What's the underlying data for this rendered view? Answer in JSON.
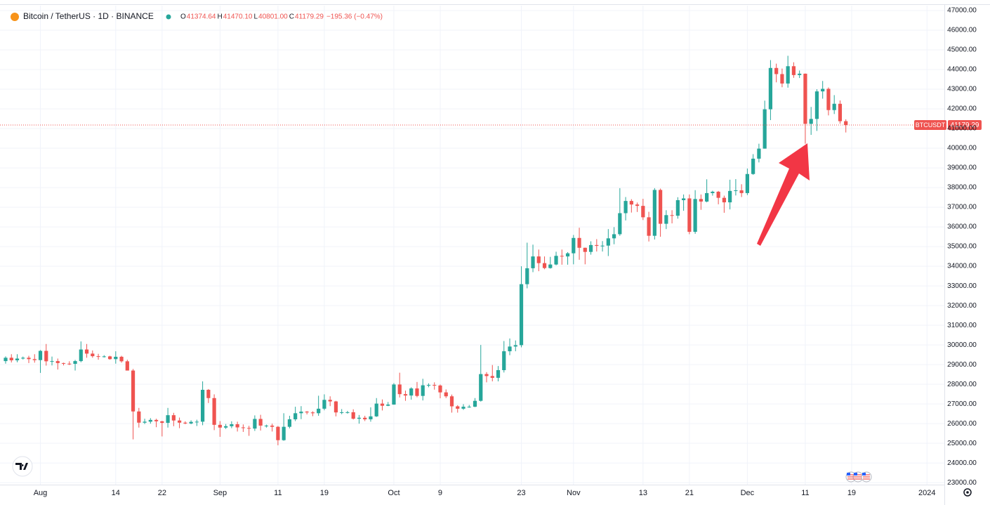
{
  "chart_data": {
    "type": "candlestick",
    "title": "Bitcoin / TetherUS · 1D · BINANCE",
    "legend": [
      {
        "key": "O",
        "value": "41374.64"
      },
      {
        "key": "H",
        "value": "41470.10"
      },
      {
        "key": "L",
        "value": "40801.00"
      },
      {
        "key": "C",
        "value": "41179.29"
      }
    ],
    "change": "−195.36 (−0.47%)",
    "up_color": "#26a69a",
    "down_color": "#ef5350",
    "price_line": {
      "symbol": "BTCUSDT",
      "value": 41179.29,
      "label": "41179.29"
    },
    "grid": true,
    "xlim": [
      "2023-07-26",
      "2024-01-04"
    ],
    "ylim": [
      22900,
      47250
    ],
    "xticks": [
      {
        "value": "2023-08-01",
        "label": "Aug"
      },
      {
        "value": "2023-08-14",
        "label": "14"
      },
      {
        "value": "2023-08-22",
        "label": "22"
      },
      {
        "value": "2023-09-01",
        "label": "Sep"
      },
      {
        "value": "2023-09-11",
        "label": "11"
      },
      {
        "value": "2023-09-19",
        "label": "19"
      },
      {
        "value": "2023-10-01",
        "label": "Oct"
      },
      {
        "value": "2023-10-09",
        "label": "9"
      },
      {
        "value": "2023-10-23",
        "label": "23"
      },
      {
        "value": "2023-11-01",
        "label": "Nov"
      },
      {
        "value": "2023-11-13",
        "label": "13"
      },
      {
        "value": "2023-11-21",
        "label": "21"
      },
      {
        "value": "2023-12-01",
        "label": "Dec"
      },
      {
        "value": "2023-12-11",
        "label": "11"
      },
      {
        "value": "2023-12-19",
        "label": "19"
      },
      {
        "value": "2024-01-01",
        "label": "2024"
      }
    ],
    "yticks": [
      {
        "value": 47000,
        "label": "47000.00"
      },
      {
        "value": 46000,
        "label": "46000.00"
      },
      {
        "value": 45000,
        "label": "45000.00"
      },
      {
        "value": 44000,
        "label": "44000.00"
      },
      {
        "value": 43000,
        "label": "43000.00"
      },
      {
        "value": 42000,
        "label": "42000.00"
      },
      {
        "value": 41000,
        "label": "41000.00"
      },
      {
        "value": 40000,
        "label": "40000.00"
      },
      {
        "value": 39000,
        "label": "39000.00"
      },
      {
        "value": 38000,
        "label": "38000.00"
      },
      {
        "value": 37000,
        "label": "37000.00"
      },
      {
        "value": 36000,
        "label": "36000.00"
      },
      {
        "value": 35000,
        "label": "35000.00"
      },
      {
        "value": 34000,
        "label": "34000.00"
      },
      {
        "value": 33000,
        "label": "33000.00"
      },
      {
        "value": 32000,
        "label": "32000.00"
      },
      {
        "value": 31000,
        "label": "31000.00"
      },
      {
        "value": 30000,
        "label": "30000.00"
      },
      {
        "value": 29000,
        "label": "29000.00"
      },
      {
        "value": 28000,
        "label": "28000.00"
      },
      {
        "value": 27000,
        "label": "27000.00"
      },
      {
        "value": 26000,
        "label": "26000.00"
      },
      {
        "value": 25000,
        "label": "25000.00"
      },
      {
        "value": 24000,
        "label": "24000.00"
      },
      {
        "value": 23000,
        "label": "23000.00"
      }
    ],
    "x": [
      "2023-07-26",
      "2023-07-27",
      "2023-07-28",
      "2023-07-29",
      "2023-07-30",
      "2023-07-31",
      "2023-08-01",
      "2023-08-02",
      "2023-08-03",
      "2023-08-04",
      "2023-08-05",
      "2023-08-06",
      "2023-08-07",
      "2023-08-08",
      "2023-08-09",
      "2023-08-10",
      "2023-08-11",
      "2023-08-12",
      "2023-08-13",
      "2023-08-14",
      "2023-08-15",
      "2023-08-16",
      "2023-08-17",
      "2023-08-18",
      "2023-08-19",
      "2023-08-20",
      "2023-08-21",
      "2023-08-22",
      "2023-08-23",
      "2023-08-24",
      "2023-08-25",
      "2023-08-26",
      "2023-08-27",
      "2023-08-28",
      "2023-08-29",
      "2023-08-30",
      "2023-08-31",
      "2023-09-01",
      "2023-09-02",
      "2023-09-03",
      "2023-09-04",
      "2023-09-05",
      "2023-09-06",
      "2023-09-07",
      "2023-09-08",
      "2023-09-09",
      "2023-09-10",
      "2023-09-11",
      "2023-09-12",
      "2023-09-13",
      "2023-09-14",
      "2023-09-15",
      "2023-09-16",
      "2023-09-17",
      "2023-09-18",
      "2023-09-19",
      "2023-09-20",
      "2023-09-21",
      "2023-09-22",
      "2023-09-23",
      "2023-09-24",
      "2023-09-25",
      "2023-09-26",
      "2023-09-27",
      "2023-09-28",
      "2023-09-29",
      "2023-09-30",
      "2023-10-01",
      "2023-10-02",
      "2023-10-03",
      "2023-10-04",
      "2023-10-05",
      "2023-10-06",
      "2023-10-07",
      "2023-10-08",
      "2023-10-09",
      "2023-10-10",
      "2023-10-11",
      "2023-10-12",
      "2023-10-13",
      "2023-10-14",
      "2023-10-15",
      "2023-10-16",
      "2023-10-17",
      "2023-10-18",
      "2023-10-19",
      "2023-10-20",
      "2023-10-21",
      "2023-10-22",
      "2023-10-23",
      "2023-10-24",
      "2023-10-25",
      "2023-10-26",
      "2023-10-27",
      "2023-10-28",
      "2023-10-29",
      "2023-10-30",
      "2023-10-31",
      "2023-11-01",
      "2023-11-02",
      "2023-11-03",
      "2023-11-04",
      "2023-11-05",
      "2023-11-06",
      "2023-11-07",
      "2023-11-08",
      "2023-11-09",
      "2023-11-10",
      "2023-11-11",
      "2023-11-12",
      "2023-11-13",
      "2023-11-14",
      "2023-11-15",
      "2023-11-16",
      "2023-11-17",
      "2023-11-18",
      "2023-11-19",
      "2023-11-20",
      "2023-11-21",
      "2023-11-22",
      "2023-11-23",
      "2023-11-24",
      "2023-11-25",
      "2023-11-26",
      "2023-11-27",
      "2023-11-28",
      "2023-11-29",
      "2023-11-30",
      "2023-12-01",
      "2023-12-02",
      "2023-12-03",
      "2023-12-04",
      "2023-12-05",
      "2023-12-06",
      "2023-12-07",
      "2023-12-08",
      "2023-12-09",
      "2023-12-10",
      "2023-12-11",
      "2023-12-12",
      "2023-12-13",
      "2023-12-14",
      "2023-12-15",
      "2023-12-16",
      "2023-12-17",
      "2023-12-18"
    ],
    "candles": [
      [
        29180,
        29420,
        29050,
        29350
      ],
      [
        29350,
        29530,
        29110,
        29220
      ],
      [
        29220,
        29530,
        29120,
        29310
      ],
      [
        29310,
        29410,
        29260,
        29350
      ],
      [
        29350,
        29450,
        29080,
        29280
      ],
      [
        29280,
        29530,
        29100,
        29230
      ],
      [
        29230,
        29740,
        28580,
        29700
      ],
      [
        29700,
        30050,
        28950,
        29170
      ],
      [
        29170,
        29410,
        28960,
        29180
      ],
      [
        29180,
        29310,
        28750,
        29080
      ],
      [
        29080,
        29100,
        28960,
        29050
      ],
      [
        29050,
        29170,
        28980,
        29040
      ],
      [
        29040,
        29240,
        28700,
        29180
      ],
      [
        29180,
        30180,
        29120,
        29770
      ],
      [
        29770,
        30050,
        29350,
        29560
      ],
      [
        29560,
        29720,
        29350,
        29430
      ],
      [
        29430,
        29550,
        29250,
        29400
      ],
      [
        29400,
        29480,
        29360,
        29420
      ],
      [
        29420,
        29450,
        29250,
        29280
      ],
      [
        29280,
        29680,
        29050,
        29400
      ],
      [
        29400,
        29450,
        29100,
        29170
      ],
      [
        29170,
        29250,
        28700,
        28700
      ],
      [
        28700,
        28780,
        25200,
        26620
      ],
      [
        26620,
        26800,
        25800,
        26050
      ],
      [
        26050,
        26250,
        25980,
        26100
      ],
      [
        26100,
        26280,
        26000,
        26190
      ],
      [
        26190,
        26250,
        25820,
        26120
      ],
      [
        26120,
        26140,
        25350,
        26040
      ],
      [
        26040,
        26800,
        25800,
        26430
      ],
      [
        26430,
        26550,
        25870,
        26160
      ],
      [
        26160,
        26310,
        25770,
        26050
      ],
      [
        26050,
        26120,
        25970,
        26010
      ],
      [
        26010,
        26170,
        25970,
        26090
      ],
      [
        26090,
        26200,
        25880,
        26100
      ],
      [
        26100,
        28150,
        25920,
        27720
      ],
      [
        27720,
        27760,
        27050,
        27300
      ],
      [
        27300,
        27490,
        25670,
        25940
      ],
      [
        25940,
        26130,
        25330,
        25800
      ],
      [
        25800,
        25980,
        25730,
        25870
      ],
      [
        25870,
        26120,
        25770,
        25970
      ],
      [
        25970,
        26100,
        25600,
        25810
      ],
      [
        25810,
        25960,
        25580,
        25780
      ],
      [
        25780,
        25890,
        25380,
        25750
      ],
      [
        25750,
        26420,
        25630,
        26240
      ],
      [
        26240,
        26450,
        25650,
        25900
      ],
      [
        25900,
        25950,
        25800,
        25900
      ],
      [
        25900,
        26000,
        25600,
        25840
      ],
      [
        25840,
        25880,
        24900,
        25160
      ],
      [
        25160,
        26530,
        25130,
        25840
      ],
      [
        25840,
        26400,
        25760,
        26220
      ],
      [
        26220,
        26860,
        26130,
        26530
      ],
      [
        26530,
        26890,
        26230,
        26610
      ],
      [
        26610,
        26640,
        26470,
        26570
      ],
      [
        26570,
        26630,
        26380,
        26530
      ],
      [
        26530,
        27420,
        26400,
        26760
      ],
      [
        26760,
        27490,
        26680,
        27210
      ],
      [
        27210,
        27390,
        26890,
        27130
      ],
      [
        27130,
        27160,
        26370,
        26570
      ],
      [
        26570,
        26740,
        26480,
        26580
      ],
      [
        26580,
        26650,
        26510,
        26580
      ],
      [
        26580,
        26730,
        26210,
        26250
      ],
      [
        26250,
        26440,
        26000,
        26300
      ],
      [
        26300,
        26400,
        26130,
        26220
      ],
      [
        26220,
        26830,
        26100,
        26370
      ],
      [
        26370,
        27300,
        26340,
        27020
      ],
      [
        27020,
        27230,
        26670,
        26910
      ],
      [
        26910,
        27100,
        26890,
        26970
      ],
      [
        26970,
        28060,
        26960,
        27990
      ],
      [
        27990,
        28590,
        27330,
        27500
      ],
      [
        27500,
        27680,
        27160,
        27430
      ],
      [
        27430,
        27850,
        27220,
        27790
      ],
      [
        27790,
        28120,
        27340,
        27410
      ],
      [
        27410,
        28280,
        27180,
        27950
      ],
      [
        27950,
        28050,
        27850,
        27970
      ],
      [
        27970,
        28100,
        27730,
        27940
      ],
      [
        27940,
        27990,
        27290,
        27590
      ],
      [
        27590,
        27740,
        27300,
        27390
      ],
      [
        27390,
        27480,
        26560,
        26880
      ],
      [
        26880,
        26940,
        26560,
        26760
      ],
      [
        26760,
        26990,
        26700,
        26860
      ],
      [
        26860,
        26950,
        26810,
        26860
      ],
      [
        26860,
        27300,
        26840,
        27160
      ],
      [
        27160,
        30000,
        27120,
        28520
      ],
      [
        28520,
        28620,
        28100,
        28420
      ],
      [
        28420,
        28980,
        28150,
        28330
      ],
      [
        28330,
        28930,
        28150,
        28720
      ],
      [
        28720,
        30200,
        28600,
        29680
      ],
      [
        29680,
        30330,
        29480,
        29920
      ],
      [
        29920,
        30230,
        29680,
        29990
      ],
      [
        29990,
        34000,
        29880,
        33090
      ],
      [
        33090,
        35200,
        32880,
        33900
      ],
      [
        33900,
        35100,
        33700,
        34500
      ],
      [
        34500,
        34850,
        33750,
        34160
      ],
      [
        34160,
        34500,
        33850,
        33910
      ],
      [
        33910,
        34480,
        33880,
        34090
      ],
      [
        34090,
        34740,
        34050,
        34530
      ],
      [
        34530,
        34850,
        34080,
        34500
      ],
      [
        34500,
        34720,
        34080,
        34660
      ],
      [
        34660,
        35590,
        34100,
        35440
      ],
      [
        35440,
        35960,
        34330,
        34940
      ],
      [
        34940,
        34950,
        34100,
        34730
      ],
      [
        34730,
        35270,
        34590,
        35080
      ],
      [
        35080,
        35380,
        34750,
        35040
      ],
      [
        35040,
        35280,
        34750,
        35050
      ],
      [
        35050,
        35890,
        34520,
        35420
      ],
      [
        35420,
        35990,
        35120,
        35630
      ],
      [
        35630,
        37970,
        35550,
        36700
      ],
      [
        36700,
        37520,
        36330,
        37320
      ],
      [
        37320,
        37410,
        36730,
        37140
      ],
      [
        37140,
        37240,
        36760,
        37070
      ],
      [
        37070,
        37430,
        36350,
        36490
      ],
      [
        36490,
        36770,
        35260,
        35550
      ],
      [
        35550,
        37970,
        35360,
        37880
      ],
      [
        37880,
        37950,
        35500,
        36160
      ],
      [
        36160,
        36850,
        35890,
        36600
      ],
      [
        36600,
        36850,
        36180,
        36570
      ],
      [
        36570,
        37510,
        36420,
        37360
      ],
      [
        37360,
        37650,
        36820,
        37450
      ],
      [
        37450,
        37650,
        35630,
        35750
      ],
      [
        35750,
        37870,
        35650,
        37420
      ],
      [
        37420,
        37650,
        36870,
        37290
      ],
      [
        37290,
        38420,
        37250,
        37720
      ],
      [
        37720,
        37840,
        37590,
        37790
      ],
      [
        37790,
        37830,
        37150,
        37480
      ],
      [
        37480,
        37590,
        36720,
        37250
      ],
      [
        37250,
        38400,
        36890,
        37830
      ],
      [
        37830,
        38430,
        37600,
        37860
      ],
      [
        37860,
        38170,
        37520,
        37720
      ],
      [
        37720,
        38970,
        37620,
        38690
      ],
      [
        38690,
        39700,
        38650,
        39470
      ],
      [
        39470,
        40230,
        39280,
        39980
      ],
      [
        39980,
        42420,
        39980,
        41980
      ],
      [
        41980,
        44480,
        41430,
        44080
      ],
      [
        44080,
        44300,
        43350,
        43770
      ],
      [
        43770,
        44050,
        43100,
        43290
      ],
      [
        43290,
        44700,
        43080,
        44170
      ],
      [
        44170,
        44370,
        43580,
        43720
      ],
      [
        43720,
        43950,
        43570,
        43790
      ],
      [
        43790,
        43800,
        40230,
        41240
      ],
      [
        41240,
        42100,
        40680,
        41490
      ],
      [
        41490,
        43000,
        40880,
        42890
      ],
      [
        42890,
        43420,
        42520,
        43020
      ],
      [
        43020,
        43090,
        41670,
        41940
      ],
      [
        41940,
        42700,
        41740,
        42260
      ],
      [
        42260,
        42430,
        41250,
        41374.64
      ],
      [
        41374.64,
        41470.1,
        40801.0,
        41179.29
      ]
    ]
  }
}
